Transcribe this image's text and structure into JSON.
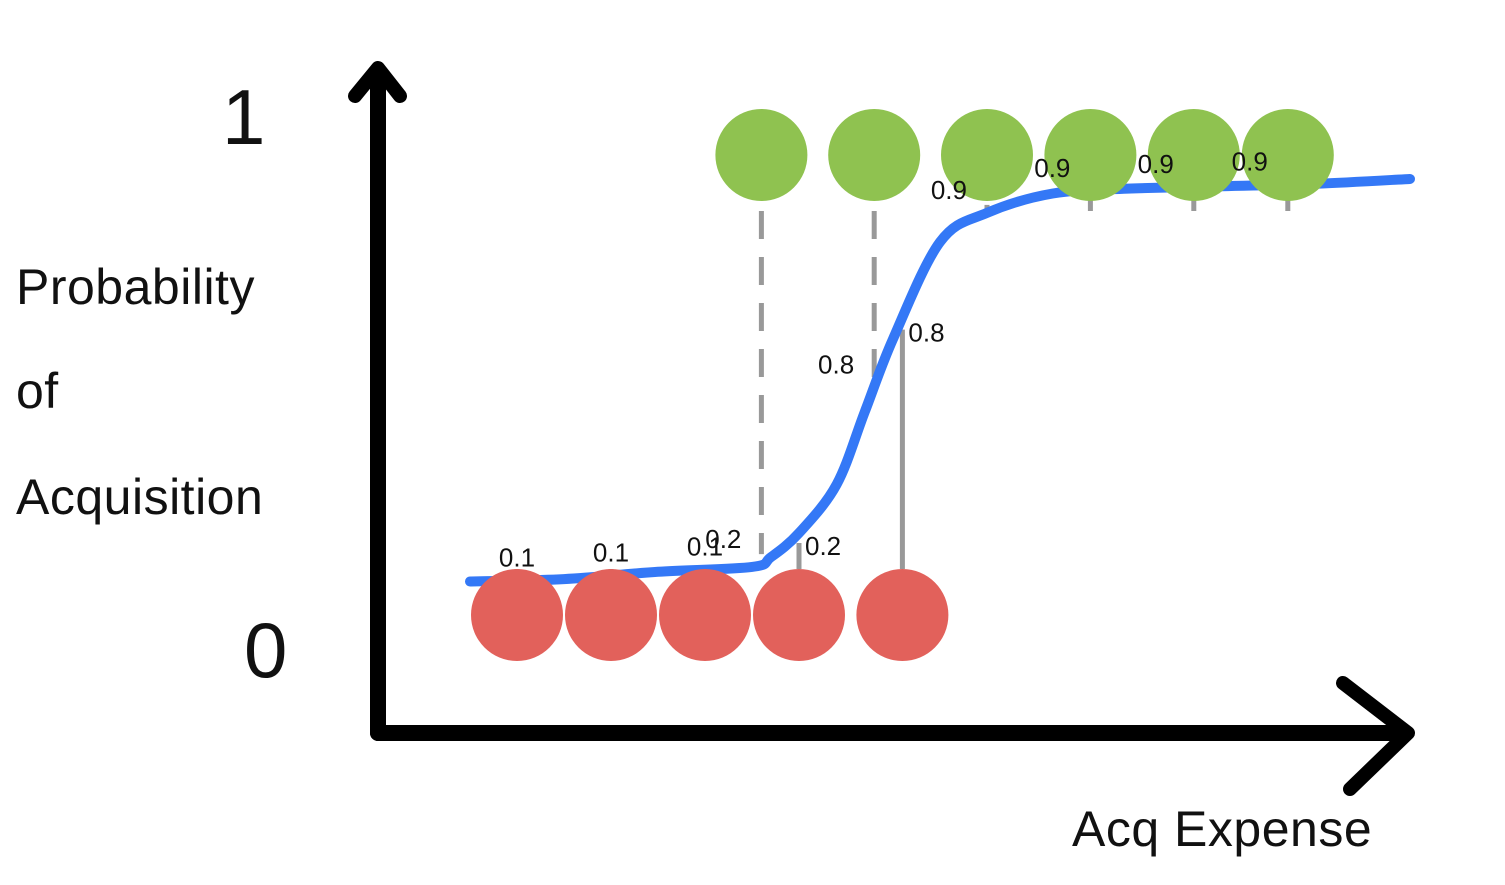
{
  "chart_data": {
    "type": "scatter",
    "ylabel_lines": [
      "Probability",
      "of",
      "Acquisition"
    ],
    "xlabel": "Acq Expense",
    "y_ticks": [
      "1",
      "0"
    ],
    "ylim": [
      0,
      1
    ],
    "curve": {
      "color": "#3478f6",
      "x": [
        0,
        0.1,
        0.2,
        0.3,
        0.32,
        0.35,
        0.39,
        0.42,
        0.45,
        0.5,
        0.55,
        0.62,
        0.7,
        0.8,
        0.9,
        1.0
      ],
      "y": [
        0.1,
        0.105,
        0.12,
        0.13,
        0.15,
        0.2,
        0.3,
        0.45,
        0.6,
        0.8,
        0.86,
        0.9,
        0.91,
        0.915,
        0.92,
        0.93
      ]
    },
    "points": [
      {
        "x": 0.05,
        "class": 0,
        "label": "0.1"
      },
      {
        "x": 0.15,
        "class": 0,
        "label": "0.1"
      },
      {
        "x": 0.25,
        "class": 0,
        "label": "0.1"
      },
      {
        "x": 0.31,
        "class": 1,
        "label": "0.2"
      },
      {
        "x": 0.35,
        "class": 0,
        "label": "0.2"
      },
      {
        "x": 0.43,
        "class": 1,
        "label": "0.8"
      },
      {
        "x": 0.46,
        "class": 0,
        "label": "0.8"
      },
      {
        "x": 0.55,
        "class": 1,
        "label": "0.9"
      },
      {
        "x": 0.66,
        "class": 1,
        "label": "0.9"
      },
      {
        "x": 0.77,
        "class": 1,
        "label": "0.9"
      },
      {
        "x": 0.87,
        "class": 1,
        "label": "0.9"
      }
    ],
    "colors": {
      "class_1": "#8fc250",
      "class_0": "#e2615b",
      "connector": "#999999",
      "axis": "#000000"
    }
  }
}
